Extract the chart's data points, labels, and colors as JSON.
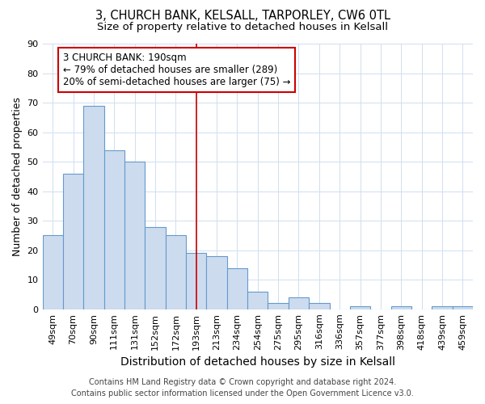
{
  "title1": "3, CHURCH BANK, KELSALL, TARPORLEY, CW6 0TL",
  "title2": "Size of property relative to detached houses in Kelsall",
  "xlabel": "Distribution of detached houses by size in Kelsall",
  "ylabel": "Number of detached properties",
  "categories": [
    "49sqm",
    "70sqm",
    "90sqm",
    "111sqm",
    "131sqm",
    "152sqm",
    "172sqm",
    "193sqm",
    "213sqm",
    "234sqm",
    "254sqm",
    "275sqm",
    "295sqm",
    "316sqm",
    "336sqm",
    "357sqm",
    "377sqm",
    "398sqm",
    "418sqm",
    "439sqm",
    "459sqm"
  ],
  "values": [
    25,
    46,
    69,
    54,
    50,
    28,
    25,
    19,
    18,
    14,
    6,
    2,
    4,
    2,
    0,
    1,
    0,
    1,
    0,
    1,
    1
  ],
  "bar_color": "#ccdcee",
  "bar_edge_color": "#6699cc",
  "vline_x_index": 7,
  "vline_color": "#cc0000",
  "annotation_line1": "3 CHURCH BANK: 190sqm",
  "annotation_line2": "← 79% of detached houses are smaller (289)",
  "annotation_line3": "20% of semi-detached houses are larger (75) →",
  "annotation_box_color": "#ffffff",
  "annotation_box_edge_color": "#cc0000",
  "footer1": "Contains HM Land Registry data © Crown copyright and database right 2024.",
  "footer2": "Contains public sector information licensed under the Open Government Licence v3.0.",
  "ylim": [
    0,
    90
  ],
  "yticks": [
    0,
    10,
    20,
    30,
    40,
    50,
    60,
    70,
    80,
    90
  ],
  "title1_fontsize": 10.5,
  "title2_fontsize": 9.5,
  "xlabel_fontsize": 10,
  "ylabel_fontsize": 9,
  "tick_fontsize": 8,
  "annotation_fontsize": 8.5,
  "footer_fontsize": 7,
  "bg_color": "#ffffff",
  "grid_color": "#d0dff0"
}
